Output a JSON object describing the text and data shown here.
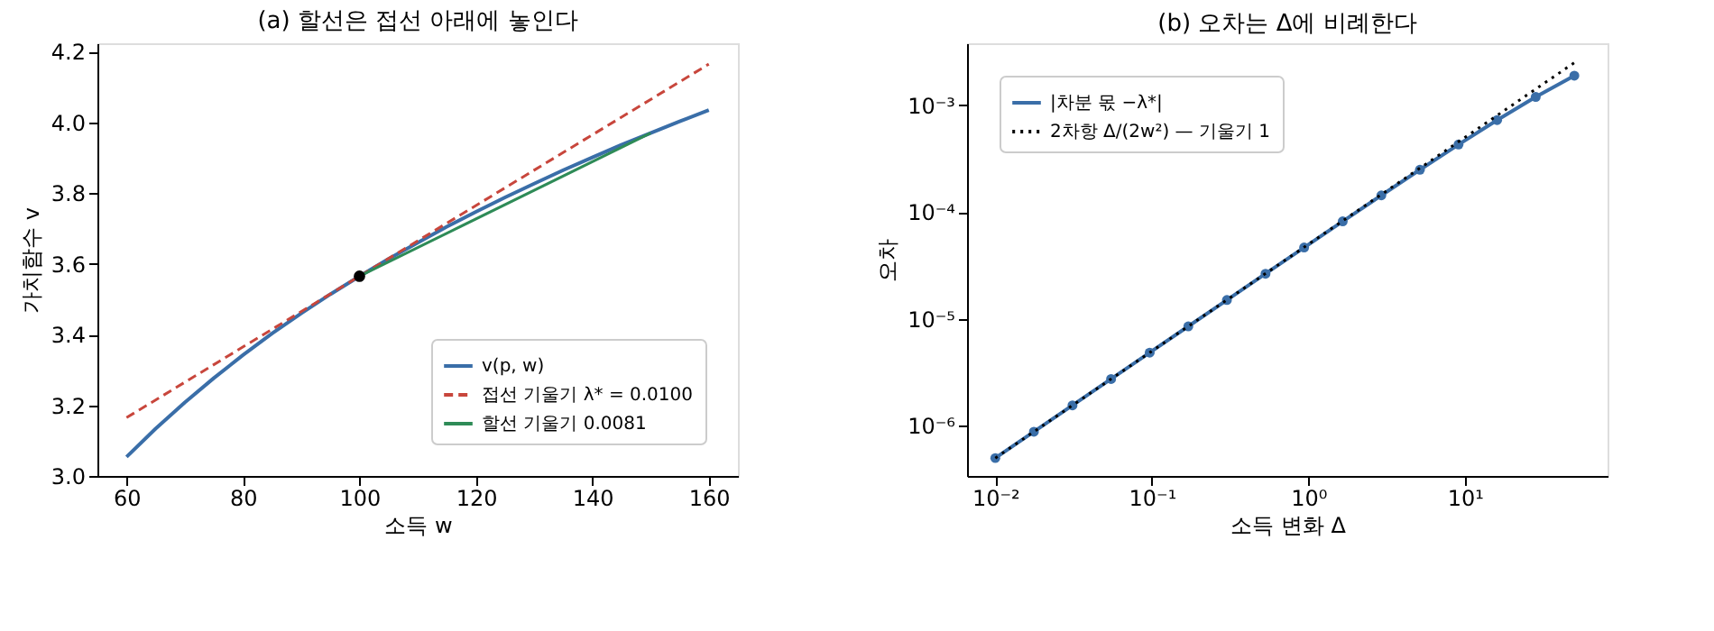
{
  "chart_data": [
    {
      "type": "line",
      "title": "(a) 할선은 접선 아래에 놓인다",
      "xlabel": "소득 w",
      "ylabel": "가치함수 v",
      "xlim": [
        55,
        165
      ],
      "ylim": [
        3.0,
        4.224
      ],
      "xticks": [
        60,
        80,
        100,
        120,
        140,
        160
      ],
      "yticks": [
        {
          "value": 3.0,
          "label": "3.0"
        },
        {
          "value": 3.2,
          "label": "3.2"
        },
        {
          "value": 3.4,
          "label": "3.4"
        },
        {
          "value": 3.6,
          "label": "3.6"
        },
        {
          "value": 3.8,
          "label": "3.8"
        },
        {
          "value": 4.0,
          "label": "4.0"
        },
        {
          "value": 4.2,
          "label": "4.2"
        }
      ],
      "grid": false,
      "legend": "bottom right",
      "series": [
        {
          "name": "v(p, w)",
          "color": "#3a6ea8",
          "line_style": "solid",
          "x": [
            60,
            65,
            70,
            75,
            80,
            85,
            90,
            95,
            100,
            105,
            110,
            115,
            120,
            125,
            130,
            135,
            140,
            145,
            150,
            155,
            160
          ],
          "values": [
            3.054,
            3.134,
            3.208,
            3.277,
            3.342,
            3.403,
            3.46,
            3.514,
            3.565,
            3.614,
            3.66,
            3.705,
            3.747,
            3.788,
            3.827,
            3.865,
            3.901,
            3.937,
            3.97,
            4.003,
            4.035
          ]
        },
        {
          "name": "접선 기울기 λ* = 0.0100",
          "color": "#c8463c",
          "line_style": "dashed",
          "x": [
            60,
            160
          ],
          "values": [
            3.165,
            4.165
          ]
        },
        {
          "name": "할선 기울기 0.0081",
          "color": "#2e8b57",
          "line_style": "solid",
          "x": [
            100,
            150
          ],
          "values": [
            3.565,
            3.97
          ]
        },
        {
          "type": "scatter",
          "color": "#000000",
          "marker": "circle",
          "x": [
            100
          ],
          "values": [
            3.565
          ]
        }
      ]
    },
    {
      "type": "line",
      "title": "(b) 오차는 Δ에 비례한다",
      "xlabel": "소득 변화 Δ",
      "ylabel": "오차",
      "log": "xy",
      "xlim": [
        0.0066,
        81.5
      ],
      "ylim": [
        3.4e-07,
        0.0038
      ],
      "xticks": [
        {
          "value": 0.01,
          "label": "10⁻²"
        },
        {
          "value": 0.1,
          "label": "10⁻¹"
        },
        {
          "value": 1,
          "label": "10⁰"
        },
        {
          "value": 10,
          "label": "10¹"
        }
      ],
      "yticks": [
        {
          "value": 1e-06,
          "label": "10⁻⁶"
        },
        {
          "value": 1e-05,
          "label": "10⁻⁵"
        },
        {
          "value": 0.0001,
          "label": "10⁻⁴"
        },
        {
          "value": 0.001,
          "label": "10⁻³"
        }
      ],
      "grid": false,
      "legend": "top left",
      "series": [
        {
          "name": "|차분 몫 −λ*|",
          "color": "#3a6ea8",
          "line_style": "solid",
          "marker": "circle",
          "x": [
            0.01,
            0.01764,
            0.03112,
            0.05491,
            0.09691,
            0.171,
            0.3017,
            0.5323,
            0.9391,
            1.657,
            2.924,
            5.159,
            9.102,
            16.06,
            28.34,
            50
          ],
          "values": [
            5e-07,
            8.82e-07,
            1.556e-06,
            2.745e-06,
            4.845e-06,
            8.54e-06,
            1.505e-05,
            2.652e-05,
            4.666e-05,
            8.195e-05,
            0.0001434,
            0.0002494,
            0.000429,
            0.000726,
            0.001195,
            0.001891
          ]
        },
        {
          "name": "2차항 Δ/(2w²) — 기울기 1",
          "color": "#000000",
          "line_style": "dotted",
          "x": [
            0.01,
            50
          ],
          "values": [
            5e-07,
            0.0025
          ]
        }
      ]
    }
  ]
}
